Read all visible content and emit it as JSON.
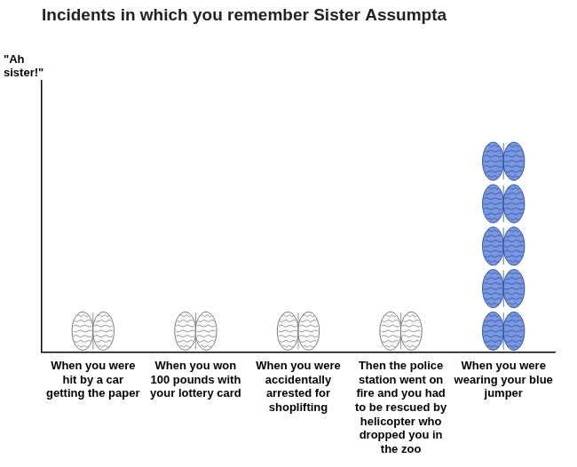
{
  "chart_data": {
    "type": "bar",
    "title": "Incidents in which you remember Sister Assumpta",
    "y_label": "\"Ah sister!\"",
    "categories": [
      "When you were hit by a car getting the paper",
      "When you won 100 pounds with your lottery card",
      "When you were accidentally arrested for shoplifting",
      "Then the police station went on fire and you had to be rescued by helicopter who dropped you in the zoo",
      "When you were wearing your blue jumper"
    ],
    "values": [
      1,
      1,
      1,
      1,
      5
    ],
    "colors": [
      "#ffffff",
      "#ffffff",
      "#ffffff",
      "#ffffff",
      "#7a98e0"
    ],
    "ylim": [
      0,
      6.4
    ],
    "tick_labels": "x",
    "grid": false,
    "marker": "brain"
  }
}
